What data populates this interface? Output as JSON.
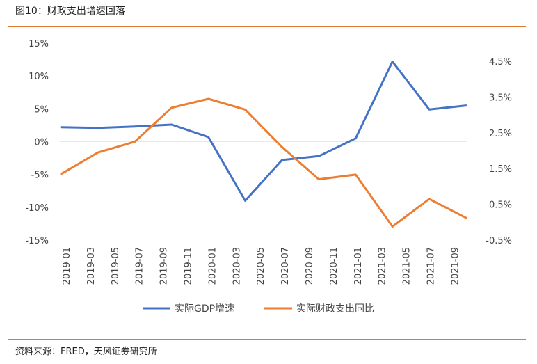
{
  "figure": {
    "title": "图10：财政支出增速回落",
    "source": "资料来源：FRED，天风证券研究所"
  },
  "colors": {
    "gdp": "#4472c4",
    "fiscal": "#ed7d31",
    "rule": "#e07b2e"
  },
  "chart_data": {
    "type": "line",
    "title": "",
    "xlabel": "",
    "ylabel_left": "",
    "ylabel_right": "",
    "x_tick_labels": [
      "2019-01",
      "2019-03",
      "2019-05",
      "2019-07",
      "2019-09",
      "2019-11",
      "2020-01",
      "2020-03",
      "2020-05",
      "2020-07",
      "2020-09",
      "2020-11",
      "2021-01",
      "2021-03",
      "2021-05",
      "2021-07",
      "2021-09"
    ],
    "y_left": {
      "ticks": [
        "15%",
        "10%",
        "5%",
        "0%",
        "-5%",
        "-10%",
        "-15%"
      ],
      "range": [
        -15,
        15
      ]
    },
    "y_right": {
      "ticks": [
        "4.5%",
        "3.5%",
        "2.5%",
        "1.5%",
        "0.5%",
        "-0.5%"
      ],
      "range": [
        -0.5,
        5.0
      ]
    },
    "legend_position": "bottom",
    "grid": false,
    "series": [
      {
        "name": "实际GDP增速",
        "axis": "left",
        "x": [
          "2019-01",
          "2019-04",
          "2019-07",
          "2019-10",
          "2020-01",
          "2020-04",
          "2020-07",
          "2020-10",
          "2021-01",
          "2021-04",
          "2021-07",
          "2021-10"
        ],
        "values": [
          2.2,
          2.1,
          2.3,
          2.6,
          0.7,
          -9.0,
          -2.8,
          -2.2,
          0.5,
          12.2,
          4.9,
          5.5
        ]
      },
      {
        "name": "实际财政支出同比",
        "axis": "right",
        "x": [
          "2019-01",
          "2019-04",
          "2019-07",
          "2019-10",
          "2020-01",
          "2020-04",
          "2020-07",
          "2020-10",
          "2021-01",
          "2021-04",
          "2021-07",
          "2021-10"
        ],
        "values": [
          1.35,
          1.95,
          2.25,
          3.2,
          3.45,
          3.15,
          2.1,
          1.2,
          1.33,
          -0.12,
          0.65,
          0.12
        ]
      }
    ]
  }
}
